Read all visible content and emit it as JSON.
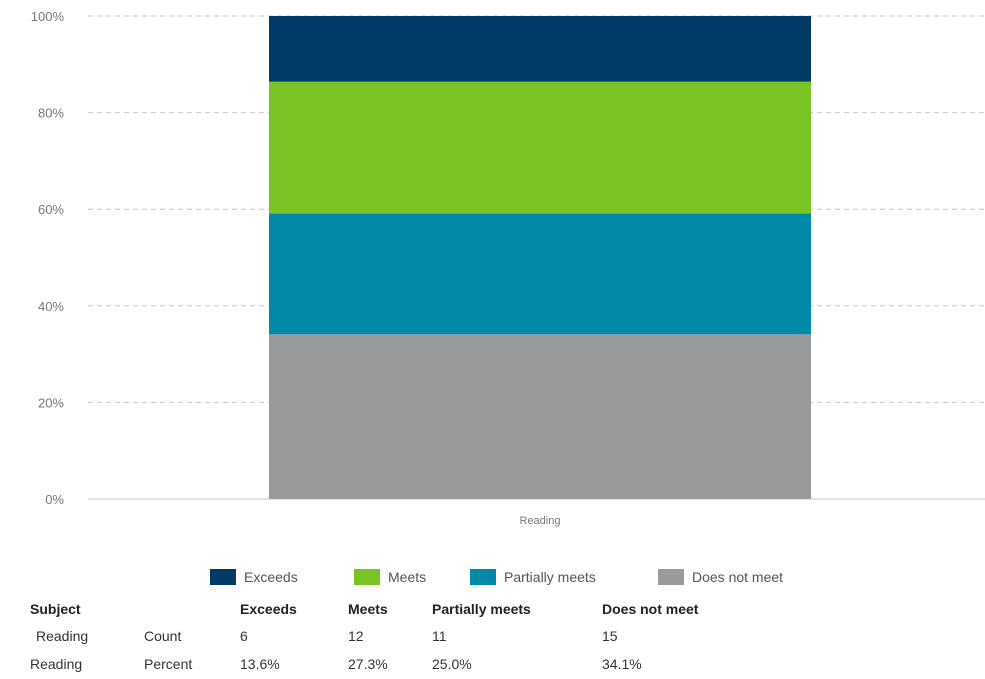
{
  "chart_data": {
    "type": "bar",
    "stacked": true,
    "categories": [
      "Reading"
    ],
    "series": [
      {
        "name": "Does not meet",
        "values": [
          34.1
        ],
        "color": "#999a9c"
      },
      {
        "name": "Partially meets",
        "values": [
          25.0
        ],
        "color": "#0089a8"
      },
      {
        "name": "Meets",
        "values": [
          27.3
        ],
        "color": "#79c424"
      },
      {
        "name": "Exceeds",
        "values": [
          13.6
        ],
        "color": "#003a66"
      }
    ],
    "ylim": [
      0,
      100
    ],
    "yticks": [
      "0%",
      "20%",
      "40%",
      "60%",
      "80%",
      "100%"
    ],
    "ytick_values": [
      0,
      20,
      40,
      60,
      80,
      100
    ],
    "grid": true,
    "legend_position": "bottom",
    "xlabel": "",
    "ylabel": "",
    "title": ""
  },
  "legend": [
    {
      "label": "Exceeds",
      "color": "#003a66"
    },
    {
      "label": "Meets",
      "color": "#79c424"
    },
    {
      "label": "Partially meets",
      "color": "#0089a8"
    },
    {
      "label": "Does not meet",
      "color": "#999a9c"
    }
  ],
  "table": {
    "headers": {
      "subject": "Subject",
      "exceeds": "Exceeds",
      "meets": "Meets",
      "partially_meets": "Partially meets",
      "does_not_meet": "Does not meet"
    },
    "rows": [
      {
        "subject": "Reading",
        "type": "Count",
        "exceeds": "6",
        "meets": "12",
        "partially_meets": "11",
        "does_not_meet": "15"
      },
      {
        "subject": "Reading",
        "type": "Percent",
        "exceeds": "13.6%",
        "meets": "27.3%",
        "partially_meets": "25.0%",
        "does_not_meet": "34.1%"
      }
    ]
  }
}
